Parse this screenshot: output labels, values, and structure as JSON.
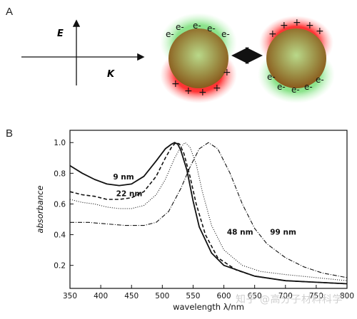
{
  "panel_a": {
    "label": "A",
    "e_field_label": "E",
    "k_vector_label": "K",
    "electron_symbol": "e-",
    "positive_symbol": "+"
  },
  "panel_b": {
    "label": "B"
  },
  "watermark": "知乎 @高分子材料科学",
  "chart_data": {
    "type": "line",
    "xlabel": "wavelength λ/nm",
    "ylabel": "absorbance",
    "xlim": [
      350,
      800
    ],
    "ylim": [
      0.05,
      1.08
    ],
    "xticks": [
      350,
      400,
      450,
      500,
      550,
      600,
      650,
      700,
      750,
      800
    ],
    "yticks": [
      0.2,
      0.4,
      0.6,
      0.8,
      1.0
    ],
    "grid": false,
    "series": [
      {
        "name": "9 nm",
        "style": "solid",
        "x": [
          350,
          370,
          390,
          410,
          430,
          450,
          470,
          490,
          505,
          515,
          520,
          525,
          530,
          540,
          550,
          560,
          580,
          600,
          650,
          700,
          750,
          800
        ],
        "y": [
          0.85,
          0.8,
          0.76,
          0.73,
          0.72,
          0.73,
          0.78,
          0.88,
          0.96,
          0.99,
          1.0,
          0.99,
          0.95,
          0.82,
          0.62,
          0.45,
          0.28,
          0.2,
          0.13,
          0.1,
          0.09,
          0.08
        ]
      },
      {
        "name": "22 nm",
        "style": "dashed",
        "x": [
          350,
          370,
          390,
          410,
          430,
          450,
          470,
          490,
          505,
          515,
          522,
          528,
          535,
          545,
          555,
          570,
          590,
          620,
          650,
          700,
          750,
          800
        ],
        "y": [
          0.68,
          0.66,
          0.65,
          0.63,
          0.63,
          0.64,
          0.68,
          0.78,
          0.9,
          0.97,
          1.0,
          0.99,
          0.93,
          0.78,
          0.6,
          0.4,
          0.25,
          0.17,
          0.13,
          0.1,
          0.09,
          0.08
        ]
      },
      {
        "name": "",
        "style": "dotted",
        "x": [
          350,
          370,
          390,
          410,
          430,
          450,
          470,
          490,
          505,
          520,
          530,
          537,
          545,
          555,
          565,
          580,
          600,
          630,
          660,
          700,
          750,
          800
        ],
        "y": [
          0.63,
          0.61,
          0.6,
          0.58,
          0.57,
          0.57,
          0.59,
          0.66,
          0.76,
          0.9,
          0.97,
          1.0,
          0.97,
          0.86,
          0.68,
          0.46,
          0.3,
          0.2,
          0.16,
          0.14,
          0.12,
          0.1
        ]
      },
      {
        "name": "48 nm / 99 nm",
        "style": "dash-dot",
        "x": [
          350,
          380,
          410,
          440,
          470,
          490,
          510,
          530,
          545,
          560,
          575,
          590,
          610,
          630,
          650,
          670,
          700,
          730,
          760,
          800
        ],
        "y": [
          0.48,
          0.48,
          0.47,
          0.46,
          0.46,
          0.48,
          0.55,
          0.7,
          0.84,
          0.96,
          1.0,
          0.96,
          0.8,
          0.6,
          0.44,
          0.34,
          0.25,
          0.19,
          0.15,
          0.12
        ]
      }
    ],
    "annotations": [
      {
        "text": "9 nm",
        "x": 420,
        "y": 0.76
      },
      {
        "text": "22 nm",
        "x": 425,
        "y": 0.65
      },
      {
        "text": "48 nm",
        "x": 605,
        "y": 0.4
      },
      {
        "text": "99 nm",
        "x": 675,
        "y": 0.4
      }
    ]
  }
}
